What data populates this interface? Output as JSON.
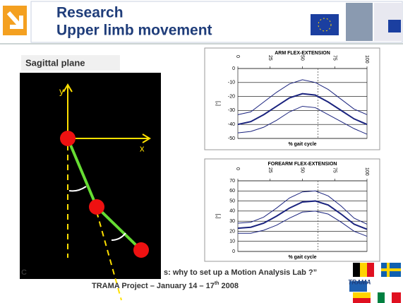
{
  "header": {
    "title_lines": [
      "Research",
      "Upper limb movement"
    ]
  },
  "section_label": "Sagittal plane",
  "diagram": {
    "y_label": "y",
    "x_label": "x"
  },
  "charts": [
    {
      "type": "line",
      "title": "ARM FLEX-EXTENSION",
      "x_label": "% gait cycle",
      "y_label": "[°]",
      "x": [
        0,
        10,
        20,
        30,
        40,
        50,
        60,
        70,
        80,
        90,
        100
      ],
      "xlim": [
        0,
        100
      ],
      "xticks": [
        0,
        25,
        50,
        75,
        100
      ],
      "ylim": [
        -50,
        0
      ],
      "yticks": [
        0,
        -10,
        -20,
        -30,
        -40,
        -50
      ],
      "grid": true,
      "marker_line_x": 62,
      "series": [
        {
          "color": "#1a237e",
          "line_width": 2,
          "values": [
            -40,
            -38,
            -33,
            -27,
            -21,
            -18,
            -19,
            -24,
            -30,
            -36,
            -40
          ]
        },
        {
          "color": "#1a237e",
          "line_width": 1,
          "values": [
            -33,
            -31,
            -24,
            -17,
            -11,
            -8,
            -10,
            -15,
            -22,
            -29,
            -33
          ]
        },
        {
          "color": "#1a237e",
          "line_width": 1,
          "values": [
            -46,
            -45,
            -42,
            -37,
            -31,
            -27,
            -28,
            -33,
            -38,
            -43,
            -47
          ]
        }
      ]
    },
    {
      "type": "line",
      "title": "FOREARM FLEX-EXTENSION",
      "x_label": "% gait cycle",
      "y_label": "[°]",
      "x": [
        0,
        10,
        20,
        30,
        40,
        50,
        60,
        70,
        80,
        90,
        100
      ],
      "xlim": [
        0,
        100
      ],
      "xticks": [
        0,
        25,
        50,
        75,
        100
      ],
      "ylim": [
        0,
        70
      ],
      "yticks": [
        0,
        10,
        20,
        30,
        40,
        50,
        60,
        70
      ],
      "grid": true,
      "marker_line_x": 62,
      "series": [
        {
          "color": "#1a237e",
          "line_width": 2,
          "values": [
            23,
            24,
            28,
            35,
            43,
            49,
            50,
            46,
            37,
            27,
            22
          ]
        },
        {
          "color": "#1a237e",
          "line_width": 1,
          "values": [
            28,
            29,
            34,
            43,
            53,
            59,
            60,
            55,
            45,
            33,
            27
          ]
        },
        {
          "color": "#1a237e",
          "line_width": 1,
          "values": [
            18,
            18,
            21,
            26,
            33,
            39,
            40,
            37,
            29,
            20,
            15
          ]
        }
      ]
    }
  ],
  "footer": {
    "line1_parts": [
      "C",
      "s: why to set up a Motion Analysis Lab ?”"
    ],
    "line2_parts": [
      "TRAMA Project – January 14 – 17",
      "th",
      " 2008"
    ]
  },
  "logo_text": "TRAMA"
}
